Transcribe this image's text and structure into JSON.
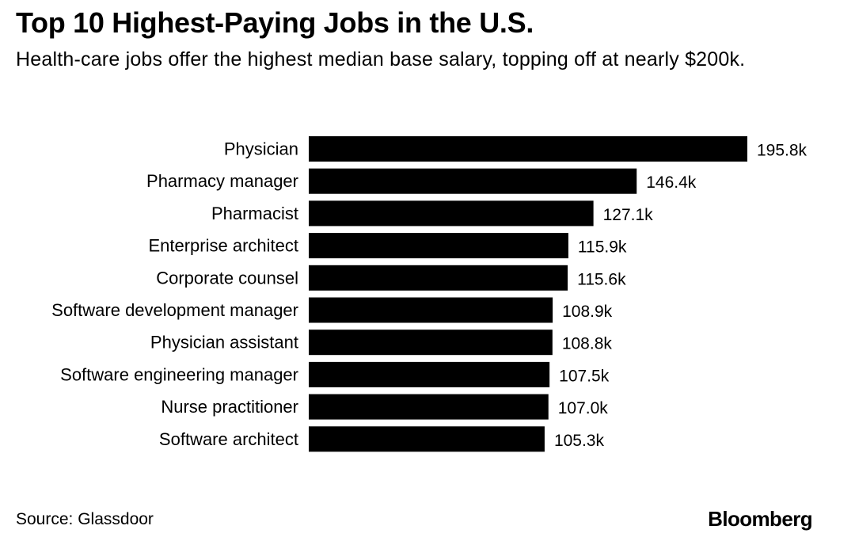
{
  "title": "Top 10 Highest-Paying Jobs in the U.S.",
  "subtitle": "Health-care jobs offer the highest median base salary, topping off at nearly $200k.",
  "source": "Source: Glassdoor",
  "brand": "Bloomberg",
  "colors": {
    "bar": "#000000",
    "background": "#ffffff",
    "text": "#000000"
  },
  "chart_data": {
    "type": "bar",
    "orientation": "horizontal",
    "title": "Top 10 Highest-Paying Jobs in the U.S.",
    "subtitle": "Health-care jobs offer the highest median base salary, topping off at nearly $200k.",
    "categories": [
      "Physician",
      "Pharmacy manager",
      "Pharmacist",
      "Enterprise architect",
      "Corporate counsel",
      "Software development manager",
      "Physician assistant",
      "Software engineering manager",
      "Nurse practitioner",
      "Software architect"
    ],
    "values": [
      195.8,
      146.4,
      127.1,
      115.9,
      115.6,
      108.9,
      108.8,
      107.5,
      107.0,
      105.3
    ],
    "value_labels": [
      "195.8k",
      "146.4k",
      "127.1k",
      "115.9k",
      "115.6k",
      "108.9k",
      "108.8k",
      "107.5k",
      "107.0k",
      "105.3k"
    ],
    "xlabel": "",
    "ylabel": "",
    "xlim": [
      0,
      195.8
    ],
    "grid": false,
    "legend": "none"
  }
}
